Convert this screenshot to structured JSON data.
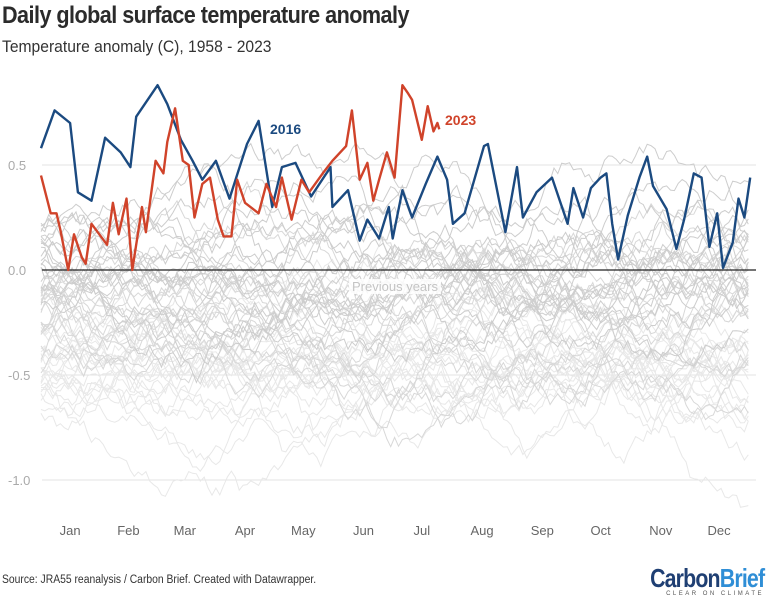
{
  "title": "Daily global surface temperature anomaly",
  "subtitle": "Temperature anomaly (C), 1958 - 2023",
  "source": "Source: JRA55 reanalysis / Carbon Brief. Created with Datawrapper.",
  "logo": {
    "text": "CarbonBrief",
    "part1": "Carbon",
    "part2": "Brief",
    "tagline": "CLEAR ON CLIMATE"
  },
  "chart_data": {
    "type": "line",
    "xlabel": "",
    "ylabel": "",
    "xlim_days": [
      0,
      365
    ],
    "ylim": [
      -1.2,
      0.95
    ],
    "yticks": [
      {
        "value": 0.5,
        "label": "0.5"
      },
      {
        "value": 0.0,
        "label": "0.0"
      },
      {
        "value": -0.5,
        "label": "-0.5"
      },
      {
        "value": -1.0,
        "label": "-1.0"
      }
    ],
    "xticks": [
      {
        "day": 15,
        "label": "Jan"
      },
      {
        "day": 45,
        "label": "Feb"
      },
      {
        "day": 74,
        "label": "Mar"
      },
      {
        "day": 105,
        "label": "Apr"
      },
      {
        "day": 135,
        "label": "May"
      },
      {
        "day": 166,
        "label": "Jun"
      },
      {
        "day": 196,
        "label": "Jul"
      },
      {
        "day": 227,
        "label": "Aug"
      },
      {
        "day": 258,
        "label": "Sep"
      },
      {
        "day": 288,
        "label": "Oct"
      },
      {
        "day": 319,
        "label": "Nov"
      },
      {
        "day": 349,
        "label": "Dec"
      }
    ],
    "grid": true,
    "background_label": "Previous years",
    "background_color": "#cfcfcf",
    "series": [
      {
        "name": "2016",
        "color": "#1b4a80",
        "day": [
          0,
          7,
          15,
          19,
          26,
          33,
          41,
          46,
          49,
          60,
          65,
          72,
          78,
          83,
          90,
          97,
          106,
          112,
          119,
          124,
          131,
          139,
          149,
          150,
          158,
          164,
          168,
          174,
          179,
          181,
          186,
          191,
          198,
          204,
          209,
          212,
          218,
          228,
          230,
          239,
          245,
          248,
          255,
          263,
          271,
          274,
          279,
          283,
          288,
          291,
          294,
          297,
          302,
          308,
          312,
          315,
          322,
          327,
          331,
          336,
          340,
          344,
          348,
          351,
          356,
          359,
          362,
          365
        ],
        "value": [
          0.58,
          0.76,
          0.7,
          0.37,
          0.33,
          0.63,
          0.56,
          0.49,
          0.73,
          0.88,
          0.79,
          0.62,
          0.52,
          0.43,
          0.52,
          0.34,
          0.6,
          0.71,
          0.3,
          0.49,
          0.51,
          0.35,
          0.49,
          0.3,
          0.38,
          0.14,
          0.24,
          0.15,
          0.3,
          0.15,
          0.38,
          0.25,
          0.41,
          0.54,
          0.43,
          0.22,
          0.27,
          0.59,
          0.6,
          0.18,
          0.49,
          0.25,
          0.37,
          0.44,
          0.22,
          0.39,
          0.25,
          0.39,
          0.44,
          0.46,
          0.22,
          0.05,
          0.26,
          0.44,
          0.54,
          0.4,
          0.29,
          0.1,
          0.24,
          0.46,
          0.44,
          0.11,
          0.27,
          0.01,
          0.13,
          0.34,
          0.25,
          0.44
        ]
      },
      {
        "name": "2023",
        "color": "#d0432a",
        "day": [
          0,
          5,
          8,
          10,
          14,
          17,
          21,
          23,
          26,
          30,
          34,
          37,
          40,
          44,
          47,
          52,
          54,
          59,
          63,
          65,
          69,
          73,
          76,
          79,
          83,
          87,
          91,
          94,
          98,
          101,
          105,
          112,
          116,
          121,
          124,
          129,
          134,
          138,
          145,
          150,
          157,
          160,
          164,
          168,
          171,
          174,
          178,
          182,
          186,
          189,
          191,
          196,
          199,
          202,
          204,
          205
        ],
        "value": [
          0.45,
          0.27,
          0.27,
          0.19,
          0.0,
          0.17,
          0.06,
          0.03,
          0.22,
          0.17,
          0.12,
          0.32,
          0.17,
          0.34,
          0.0,
          0.3,
          0.18,
          0.52,
          0.46,
          0.61,
          0.77,
          0.52,
          0.5,
          0.25,
          0.41,
          0.44,
          0.24,
          0.16,
          0.16,
          0.43,
          0.32,
          0.27,
          0.41,
          0.3,
          0.44,
          0.24,
          0.43,
          0.37,
          0.46,
          0.52,
          0.59,
          0.76,
          0.43,
          0.51,
          0.33,
          0.43,
          0.56,
          0.44,
          0.88,
          0.84,
          0.81,
          0.62,
          0.78,
          0.66,
          0.7,
          0.67
        ]
      }
    ]
  }
}
